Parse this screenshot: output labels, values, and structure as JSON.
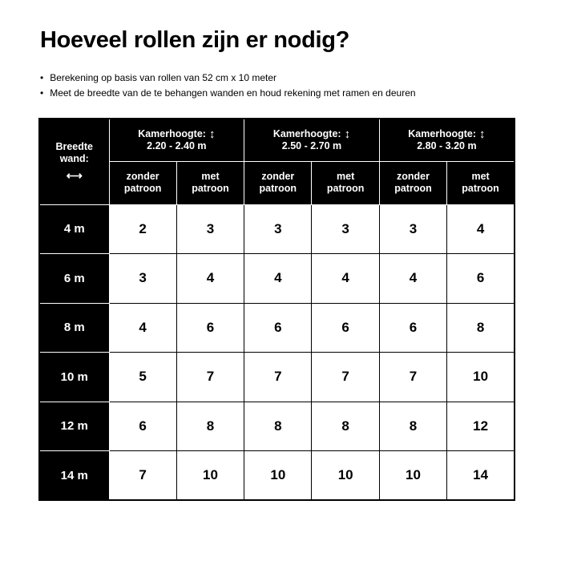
{
  "title": "Hoeveel rollen zijn er nodig?",
  "bullets": [
    "Berekening op basis van rollen van 52 cm x 10 meter",
    "Meet de breedte van de te behangen wanden en houd rekening met ramen en deuren"
  ],
  "table": {
    "corner_label_1": "Breedte",
    "corner_label_2": "wand:",
    "corner_icon": "horizontal-double-arrow",
    "height_label": "Kamerhoogte:",
    "height_icon": "vertical-double-arrow",
    "ranges": [
      "2.20 - 2.40 m",
      "2.50 - 2.70 m",
      "2.80 - 3.20 m"
    ],
    "sub_labels": [
      [
        "zonder",
        "patroon"
      ],
      [
        "met",
        "patroon"
      ]
    ],
    "rows": [
      {
        "width": "4 m",
        "values": [
          "2",
          "3",
          "3",
          "3",
          "3",
          "4"
        ]
      },
      {
        "width": "6 m",
        "values": [
          "3",
          "4",
          "4",
          "4",
          "4",
          "6"
        ]
      },
      {
        "width": "8 m",
        "values": [
          "4",
          "6",
          "6",
          "6",
          "6",
          "8"
        ]
      },
      {
        "width": "10 m",
        "values": [
          "5",
          "7",
          "7",
          "7",
          "7",
          "10"
        ]
      },
      {
        "width": "12 m",
        "values": [
          "6",
          "8",
          "8",
          "8",
          "8",
          "12"
        ]
      },
      {
        "width": "14 m",
        "values": [
          "7",
          "10",
          "10",
          "10",
          "10",
          "14"
        ]
      }
    ]
  }
}
